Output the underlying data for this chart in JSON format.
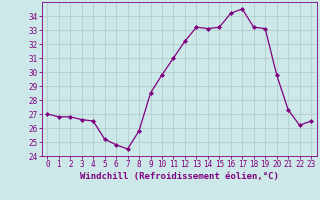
{
  "x": [
    0,
    1,
    2,
    3,
    4,
    5,
    6,
    7,
    8,
    9,
    10,
    11,
    12,
    13,
    14,
    15,
    16,
    17,
    18,
    19,
    20,
    21,
    22,
    23
  ],
  "y": [
    27.0,
    26.8,
    26.8,
    26.6,
    26.5,
    25.2,
    24.8,
    24.5,
    25.8,
    28.5,
    29.8,
    31.0,
    32.2,
    33.2,
    33.1,
    33.2,
    34.2,
    34.5,
    33.2,
    33.1,
    29.8,
    27.3,
    26.2,
    26.5
  ],
  "line_color": "#800080",
  "marker_color": "#800080",
  "bg_color": "#cce8e8",
  "grid_color": "#b0c8c8",
  "xlabel": "Windchill (Refroidissement éolien,°C)",
  "ylim": [
    24,
    35
  ],
  "xlim": [
    -0.5,
    23.5
  ],
  "yticks": [
    24,
    25,
    26,
    27,
    28,
    29,
    30,
    31,
    32,
    33,
    34
  ],
  "xticks": [
    0,
    1,
    2,
    3,
    4,
    5,
    6,
    7,
    8,
    9,
    10,
    11,
    12,
    13,
    14,
    15,
    16,
    17,
    18,
    19,
    20,
    21,
    22,
    23
  ],
  "tick_label_color": "#800080",
  "axis_color": "#800080",
  "label_fontsize": 6.5,
  "tick_fontsize": 5.5
}
